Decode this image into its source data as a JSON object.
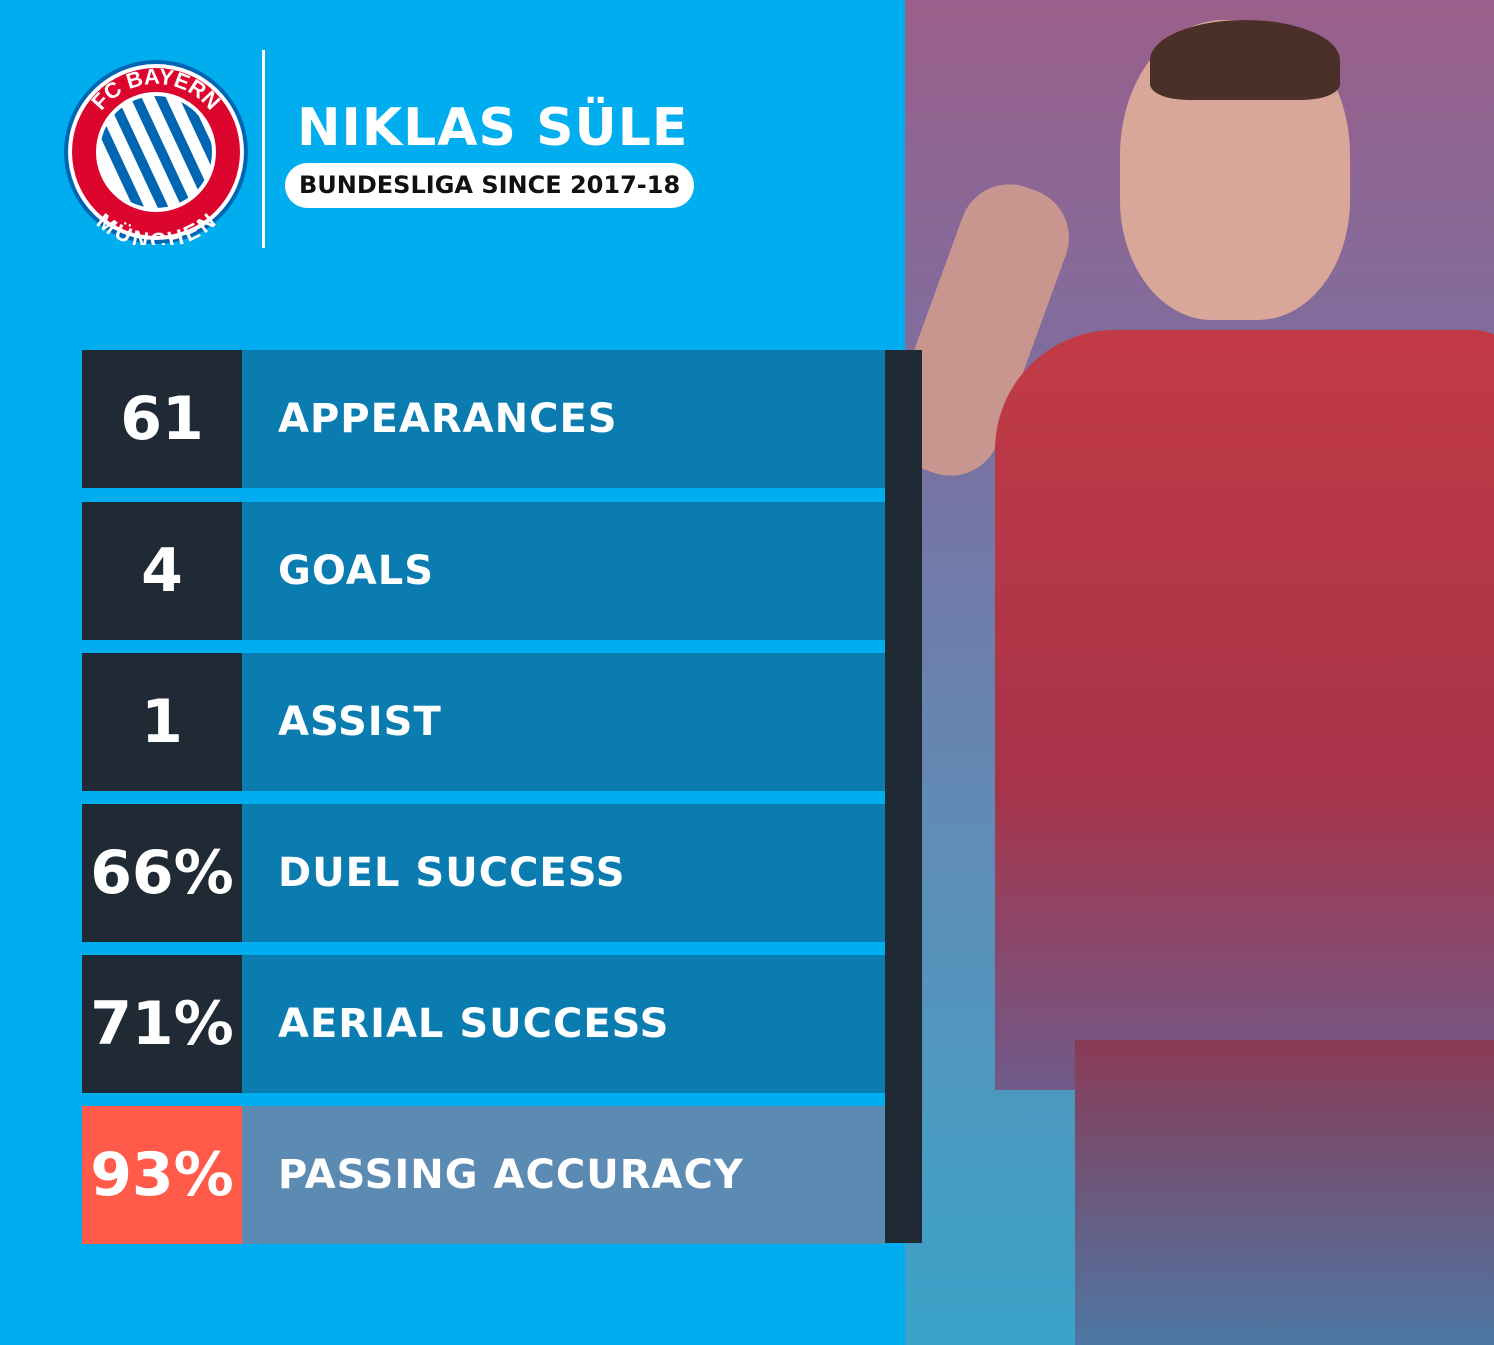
{
  "header": {
    "club_logo_text": "FC BAYERN MÜNCHEN",
    "player_name": "NIKLAS SÜLE",
    "subtitle": "BUNDESLIGA SINCE 2017-18"
  },
  "stats": [
    {
      "value": "61",
      "label": "APPEARANCES"
    },
    {
      "value": "4",
      "label": "GOALS"
    },
    {
      "value": "1",
      "label": "ASSIST"
    },
    {
      "value": "66%",
      "label": "DUEL SUCCESS"
    },
    {
      "value": "71%",
      "label": "AERIAL SUCCESS"
    },
    {
      "value": "93%",
      "label": "PASSING ACCURACY",
      "highlight": true
    }
  ],
  "colors": {
    "background": "#00adee",
    "dark": "#1f2a35",
    "row": "#0a7cb0",
    "highlight_value": "#ff5a4a",
    "highlight_row": "#5b8ab3",
    "club_red": "#dc052d",
    "club_blue": "#0066b2"
  }
}
